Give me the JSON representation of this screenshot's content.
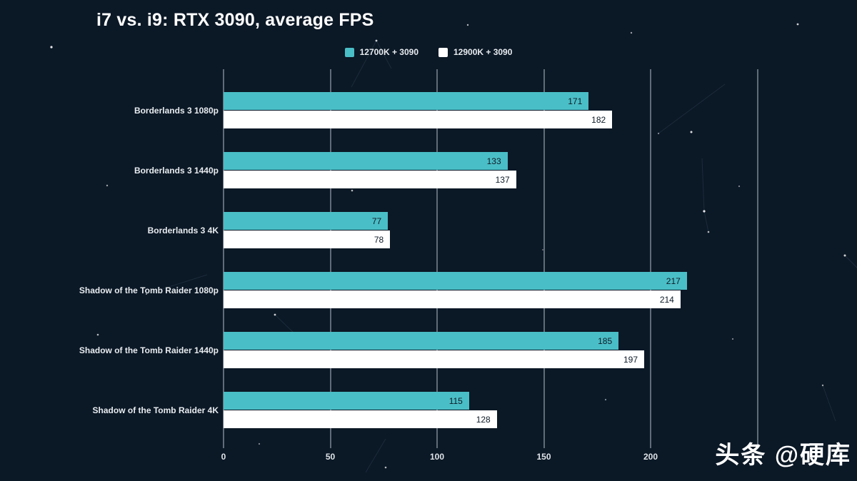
{
  "title": "i7 vs. i9: RTX 3090, average FPS",
  "watermark": "头条 @硬库",
  "colors": {
    "background": "#0b1826",
    "series1": "#4abec6",
    "series2": "#ffffff",
    "value_text": "#0d1b28",
    "gridline": "rgba(168,178,188,0.55)"
  },
  "chart_data": {
    "type": "bar",
    "orientation": "horizontal",
    "title": "i7 vs. i9: RTX 3090, average FPS",
    "categories": [
      "Borderlands 3 1080p",
      "Borderlands 3 1440p",
      "Borderlands 3 4K",
      "Shadow of the Tomb Raider 1080p",
      "Shadow of the Tomb Raider 1440p",
      "Shadow of the Tomb Raider 4K"
    ],
    "series": [
      {
        "name": "12700K + 3090",
        "color": "#4abec6",
        "values": [
          171,
          133,
          77,
          217,
          185,
          115
        ]
      },
      {
        "name": "12900K + 3090",
        "color": "#ffffff",
        "values": [
          182,
          137,
          78,
          214,
          197,
          128
        ]
      }
    ],
    "xlabel": "",
    "ylabel": "",
    "xlim": [
      0,
      250
    ],
    "xticks": [
      0,
      50,
      100,
      150,
      200,
      250
    ],
    "xtick_labels": [
      "0",
      "50",
      "100",
      "150",
      "200",
      ""
    ],
    "grid": true,
    "legend_position": "top-center",
    "value_labels": "inside-end"
  }
}
